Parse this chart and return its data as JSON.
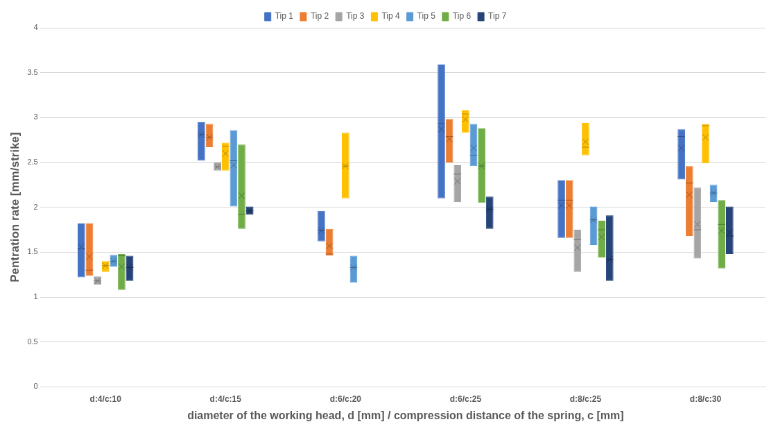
{
  "chart_data": {
    "type": "box",
    "xlabel": "diameter of the working head, d [mm] / compression distance of the spring, c [mm]",
    "ylabel": "Pentration rate [mm/strike]",
    "categories": [
      "d:4/c:10",
      "d:4/c:15",
      "d:6/c:20",
      "d:6/c:25",
      "d:8/c:25",
      "d:8/c:30"
    ],
    "ylim": [
      0,
      4
    ],
    "yticks": [
      0,
      0.5,
      1,
      1.5,
      2,
      2.5,
      3,
      3.5,
      4
    ],
    "grid": "y",
    "legend": "top",
    "series": [
      {
        "name": "Tip 1",
        "color": "#4472c4",
        "boxes": [
          {
            "low": 1.22,
            "q1": 1.22,
            "median": 1.54,
            "q3": 1.82,
            "high": 1.82,
            "mean": 1.56
          },
          {
            "low": 2.52,
            "q1": 2.52,
            "median": 2.81,
            "q3": 2.95,
            "high": 2.95,
            "mean": 2.81
          },
          {
            "low": 1.62,
            "q1": 1.62,
            "median": 1.74,
            "q3": 1.96,
            "high": 1.96,
            "mean": 1.74
          },
          {
            "low": 2.1,
            "q1": 2.1,
            "median": 2.93,
            "q3": 3.59,
            "high": 3.59,
            "mean": 2.87
          },
          {
            "low": 1.66,
            "q1": 1.66,
            "median": 2.08,
            "q3": 2.3,
            "high": 2.3,
            "mean": 2.02
          },
          {
            "low": 2.31,
            "q1": 2.31,
            "median": 2.79,
            "q3": 2.87,
            "high": 2.87,
            "mean": 2.66
          }
        ]
      },
      {
        "name": "Tip 2",
        "color": "#ed7d31",
        "boxes": [
          {
            "low": 1.24,
            "q1": 1.24,
            "median": 1.3,
            "q3": 1.82,
            "high": 1.82,
            "mean": 1.45
          },
          {
            "low": 2.67,
            "q1": 2.67,
            "median": 2.78,
            "q3": 2.93,
            "high": 2.93,
            "mean": 2.78
          },
          {
            "low": 1.46,
            "q1": 1.46,
            "median": 1.48,
            "q3": 1.76,
            "high": 1.76,
            "mean": 1.57
          },
          {
            "low": 2.5,
            "q1": 2.5,
            "median": 2.79,
            "q3": 2.98,
            "high": 2.98,
            "mean": 2.76
          },
          {
            "low": 1.66,
            "q1": 1.66,
            "median": 2.08,
            "q3": 2.3,
            "high": 2.3,
            "mean": 2.02
          },
          {
            "low": 1.68,
            "q1": 1.68,
            "median": 2.27,
            "q3": 2.46,
            "high": 2.46,
            "mean": 2.14
          }
        ]
      },
      {
        "name": "Tip 3",
        "color": "#a5a5a5",
        "boxes": [
          {
            "low": 1.14,
            "q1": 1.14,
            "median": 1.18,
            "q3": 1.23,
            "high": 1.23,
            "mean": 1.18
          },
          {
            "low": 2.41,
            "q1": 2.41,
            "median": 2.45,
            "q3": 2.5,
            "high": 2.5,
            "mean": 2.45
          },
          null,
          {
            "low": 2.06,
            "q1": 2.06,
            "median": 2.37,
            "q3": 2.47,
            "high": 2.47,
            "mean": 2.29
          },
          {
            "low": 1.28,
            "q1": 1.28,
            "median": 1.64,
            "q3": 1.75,
            "high": 1.75,
            "mean": 1.55
          },
          {
            "low": 1.43,
            "q1": 1.43,
            "median": 1.75,
            "q3": 2.22,
            "high": 2.22,
            "mean": 1.81
          }
        ]
      },
      {
        "name": "Tip 4",
        "color": "#ffc000",
        "boxes": [
          {
            "low": 1.28,
            "q1": 1.28,
            "median": 1.35,
            "q3": 1.4,
            "high": 1.4,
            "mean": 1.35
          },
          {
            "low": 2.41,
            "q1": 2.41,
            "median": 2.68,
            "q3": 2.72,
            "high": 2.72,
            "mean": 2.6
          },
          {
            "low": 2.1,
            "q1": 2.1,
            "median": 2.46,
            "q3": 2.83,
            "high": 2.83,
            "mean": 2.46
          },
          {
            "low": 2.83,
            "q1": 2.83,
            "median": 3.04,
            "q3": 3.08,
            "high": 3.08,
            "mean": 2.98
          },
          {
            "low": 2.58,
            "q1": 2.58,
            "median": 2.67,
            "q3": 2.94,
            "high": 2.94,
            "mean": 2.73
          },
          {
            "low": 2.49,
            "q1": 2.49,
            "median": 2.91,
            "q3": 2.93,
            "high": 2.93,
            "mean": 2.78
          }
        ]
      },
      {
        "name": "Tip 5",
        "color": "#5b9bd5",
        "boxes": [
          {
            "low": 1.34,
            "q1": 1.34,
            "median": 1.4,
            "q3": 1.47,
            "high": 1.47,
            "mean": 1.4
          },
          {
            "low": 2.01,
            "q1": 2.01,
            "median": 2.52,
            "q3": 2.86,
            "high": 2.86,
            "mean": 2.47
          },
          {
            "low": 1.16,
            "q1": 1.16,
            "median": 1.33,
            "q3": 1.46,
            "high": 1.46,
            "mean": 1.33
          },
          {
            "low": 2.46,
            "q1": 2.46,
            "median": 2.58,
            "q3": 2.93,
            "high": 2.93,
            "mean": 2.66
          },
          {
            "low": 1.58,
            "q1": 1.58,
            "median": 1.86,
            "q3": 2.01,
            "high": 2.01,
            "mean": 1.86
          },
          {
            "low": 2.06,
            "q1": 2.06,
            "median": 2.16,
            "q3": 2.25,
            "high": 2.25,
            "mean": 2.16
          }
        ]
      },
      {
        "name": "Tip 6",
        "color": "#70ad47",
        "boxes": [
          {
            "low": 1.08,
            "q1": 1.08,
            "median": 1.46,
            "q3": 1.48,
            "high": 1.48,
            "mean": 1.34
          },
          {
            "low": 1.76,
            "q1": 1.76,
            "median": 1.92,
            "q3": 2.7,
            "high": 2.7,
            "mean": 2.13
          },
          null,
          {
            "low": 2.05,
            "q1": 2.05,
            "median": 2.46,
            "q3": 2.88,
            "high": 2.88,
            "mean": 2.46
          },
          {
            "low": 1.44,
            "q1": 1.44,
            "median": 1.75,
            "q3": 1.85,
            "high": 1.85,
            "mean": 1.67
          },
          {
            "low": 1.32,
            "q1": 1.32,
            "median": 1.81,
            "q3": 2.08,
            "high": 2.08,
            "mean": 1.74
          }
        ]
      },
      {
        "name": "Tip 7",
        "color": "#264478",
        "boxes": [
          {
            "low": 1.18,
            "q1": 1.18,
            "median": 1.33,
            "q3": 1.46,
            "high": 1.46,
            "mean": 1.33
          },
          {
            "low": 1.92,
            "q1": 1.92,
            "median": 1.96,
            "q3": 2.01,
            "high": 2.01,
            "mean": 1.96
          },
          null,
          {
            "low": 1.76,
            "q1": 1.76,
            "median": 1.98,
            "q3": 2.12,
            "high": 2.12,
            "mean": 1.98
          },
          {
            "low": 1.18,
            "q1": 1.18,
            "median": 1.42,
            "q3": 1.91,
            "high": 1.91,
            "mean": 1.42
          },
          {
            "low": 1.48,
            "q1": 1.48,
            "median": 1.68,
            "q3": 2.01,
            "high": 2.01,
            "mean": 1.72
          }
        ]
      }
    ]
  }
}
